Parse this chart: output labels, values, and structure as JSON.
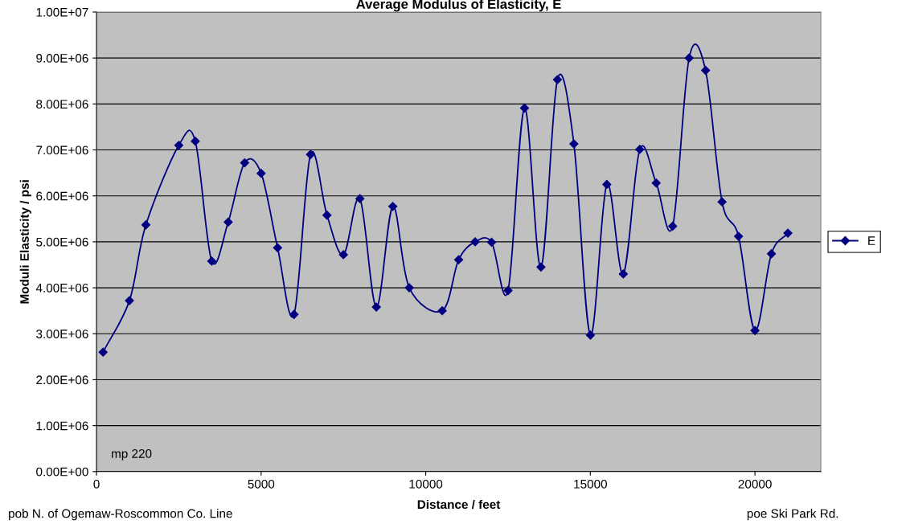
{
  "chart_data": {
    "type": "line",
    "title": "Average Modulus of Elasticity, E",
    "xlabel": "Distance / feet",
    "ylabel": "Moduli Elasticity / psi",
    "annotations": [
      "mp 220",
      "pob N. of Ogemaw-Roscommon Co. Line",
      "poe Ski Park Rd."
    ],
    "x": [
      200,
      1000,
      1500,
      2500,
      3000,
      3500,
      4000,
      4500,
      5000,
      5500,
      6000,
      6500,
      7000,
      7500,
      8000,
      8500,
      9000,
      9500,
      10500,
      11000,
      11500,
      12000,
      12500,
      13000,
      13500,
      14000,
      14500,
      15000,
      15500,
      16000,
      16500,
      17000,
      17500,
      18000,
      18500,
      19000,
      19500,
      20000,
      20500,
      21000
    ],
    "series": [
      {
        "name": "E",
        "color": "#000080",
        "values": [
          2600000,
          3720000,
          5370000,
          7100000,
          7190000,
          4580000,
          5430000,
          6720000,
          6490000,
          4870000,
          3420000,
          6900000,
          5580000,
          4720000,
          5940000,
          3580000,
          5770000,
          4000000,
          3500000,
          4610000,
          5000000,
          4990000,
          3940000,
          7910000,
          4450000,
          8530000,
          7130000,
          2970000,
          6250000,
          4300000,
          7010000,
          6280000,
          5340000,
          9000000,
          8730000,
          5870000,
          5120000,
          3070000,
          4740000,
          5190000
        ]
      }
    ],
    "xlim": [
      0,
      22000
    ],
    "xticks": [
      0,
      5000,
      10000,
      15000,
      20000
    ],
    "ylim": [
      0,
      10000000
    ],
    "yticks": [
      {
        "value": 0,
        "label": "0.00E+00"
      },
      {
        "value": 1000000,
        "label": "1.00E+06"
      },
      {
        "value": 2000000,
        "label": "2.00E+06"
      },
      {
        "value": 3000000,
        "label": "3.00E+06"
      },
      {
        "value": 4000000,
        "label": "4.00E+06"
      },
      {
        "value": 5000000,
        "label": "5.00E+06"
      },
      {
        "value": 6000000,
        "label": "6.00E+06"
      },
      {
        "value": 7000000,
        "label": "7.00E+06"
      },
      {
        "value": 8000000,
        "label": "8.00E+06"
      },
      {
        "value": 9000000,
        "label": "9.00E+06"
      },
      {
        "value": 10000000,
        "label": "1.00E+07"
      }
    ],
    "grid": "y",
    "legend": "right",
    "marker": "diamond",
    "line_style": "solid"
  }
}
